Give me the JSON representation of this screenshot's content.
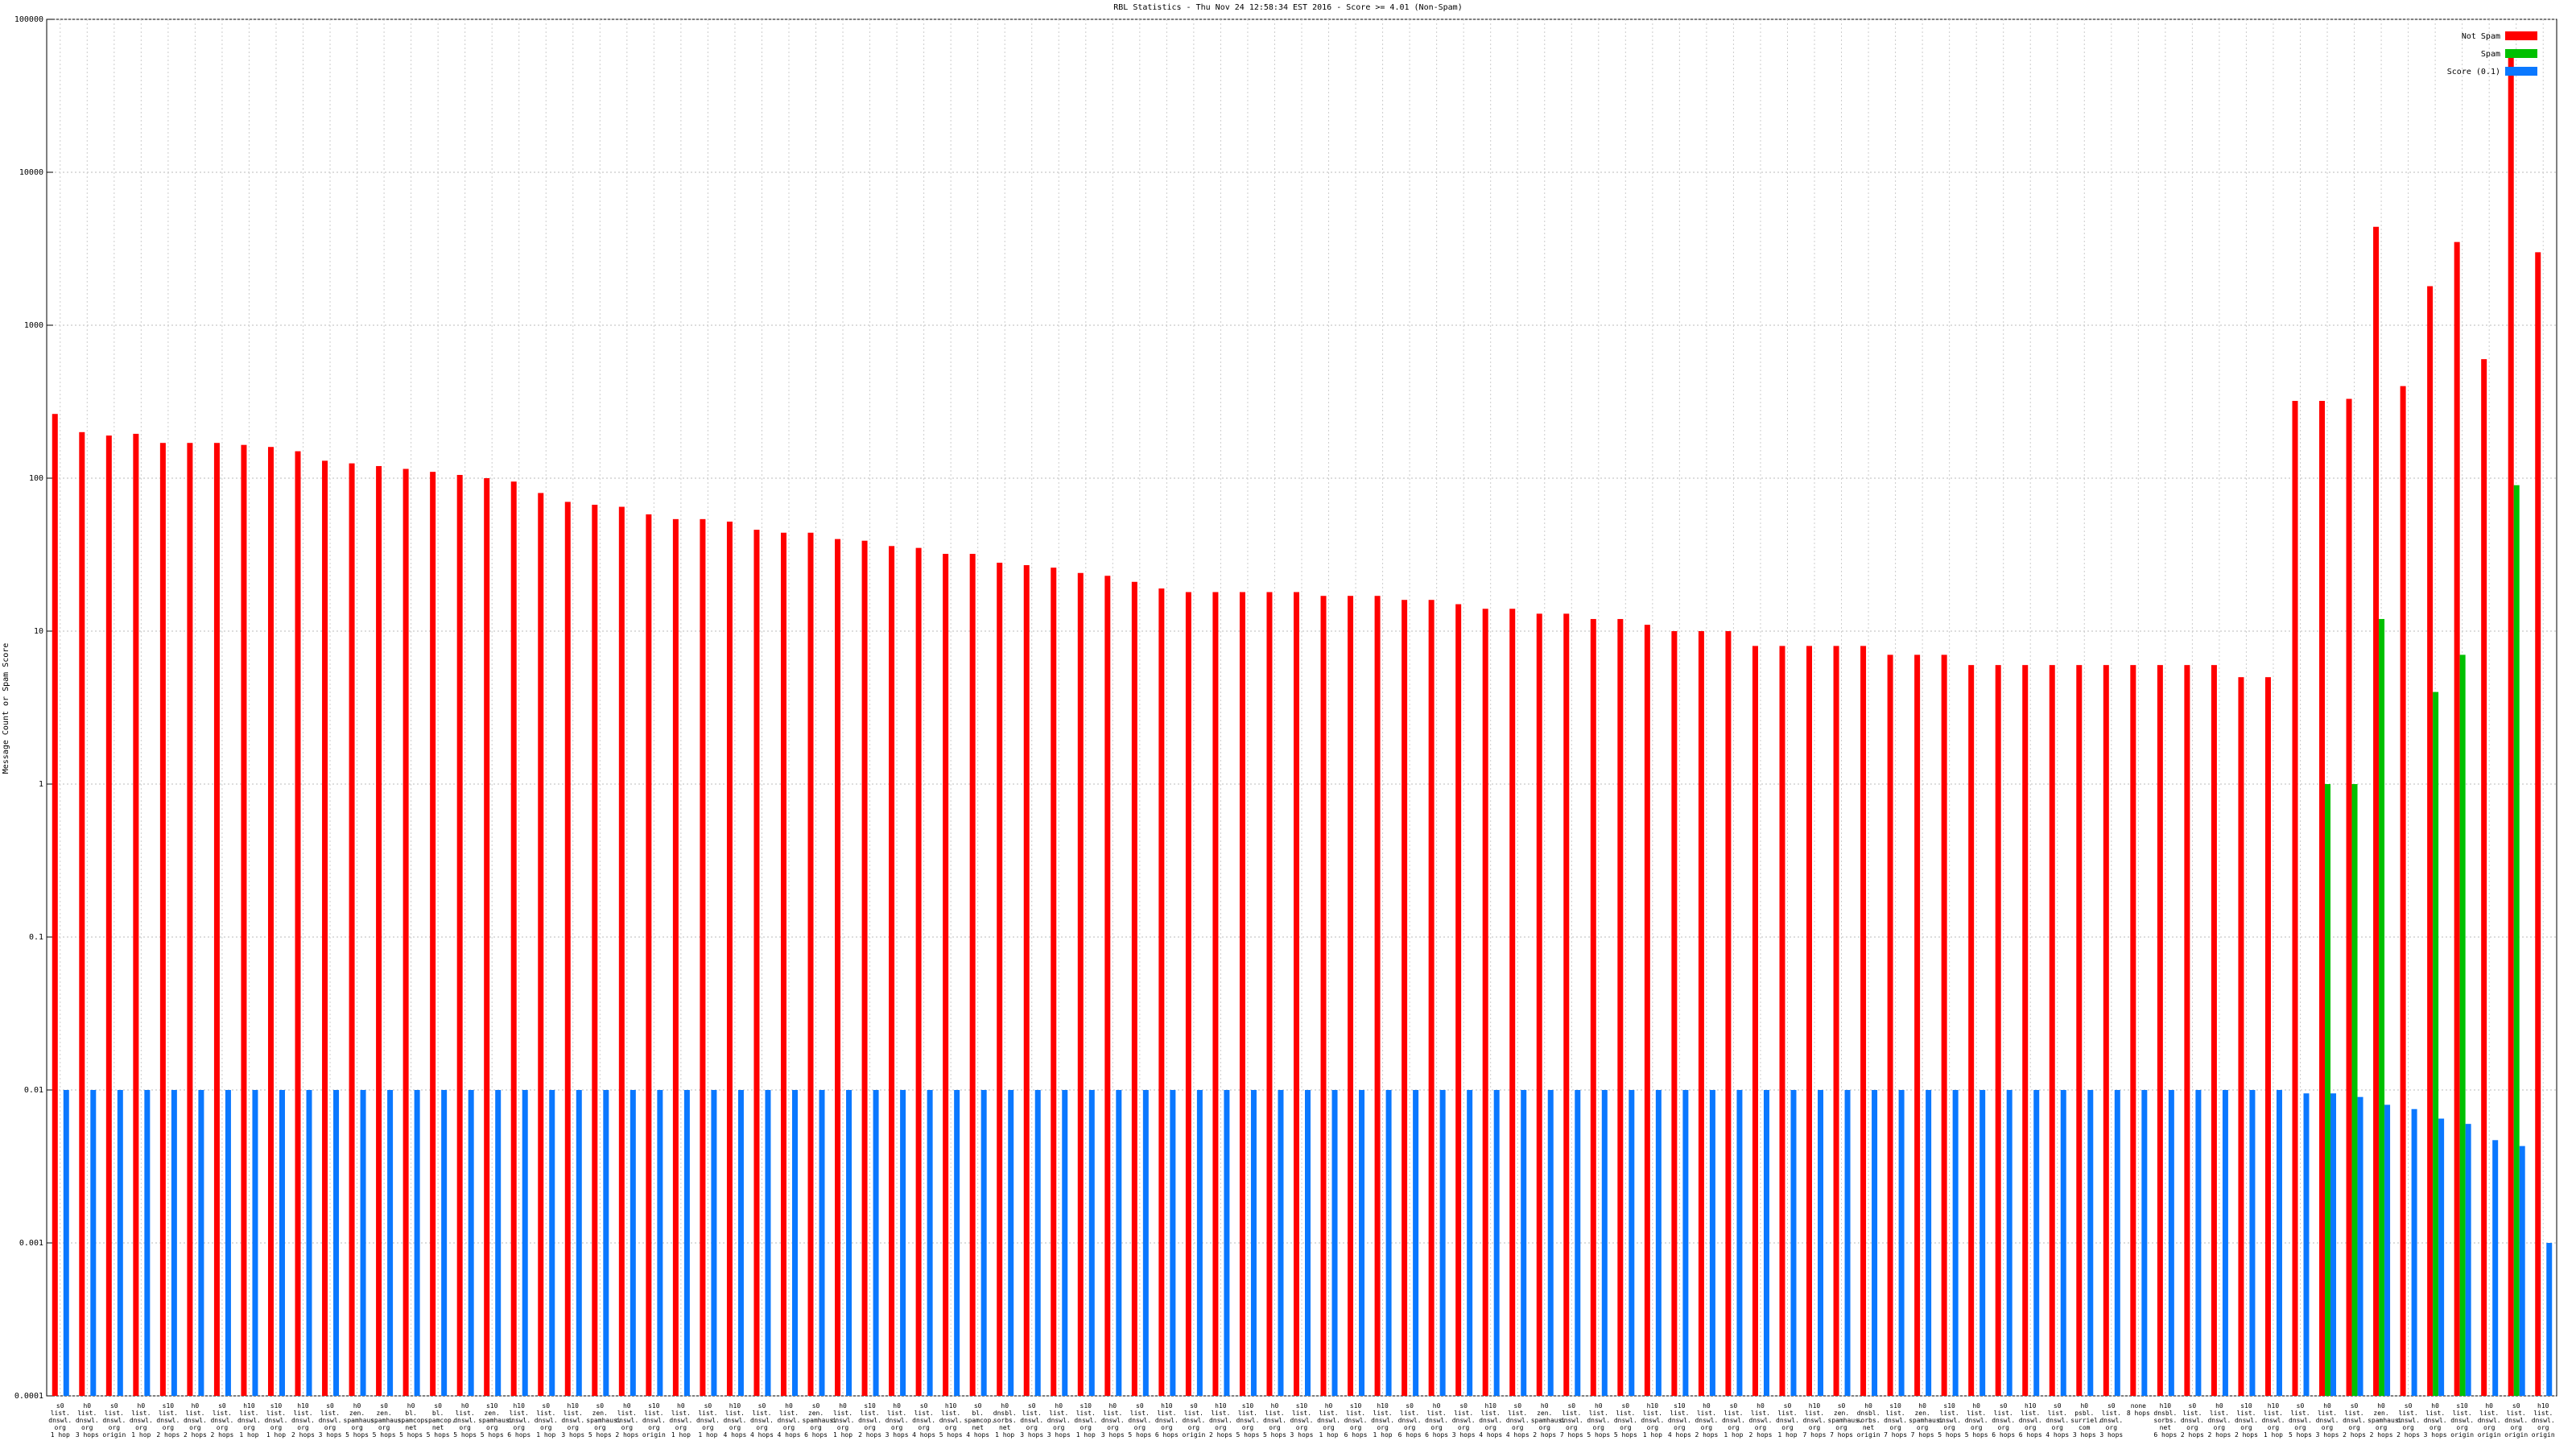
{
  "chart_data": {
    "type": "bar",
    "log_scale": true,
    "grid": true,
    "legend": "top-right",
    "title": "RBL Statistics - Thu Nov 24 12:58:34 EST 2016 - Score >= 4.01 (Non-Spam)",
    "y_label": "Message Count or Spam Score",
    "ylim": [
      0.0001,
      100000
    ],
    "yticks": [
      0.0001,
      0.001,
      0.01,
      0.1,
      1,
      10,
      100,
      1000,
      10000,
      100000
    ],
    "categories": [
      "s0\nlist.\ndnswl.\norg\n1 hop",
      "h0\nlist.\ndnswl.\norg\n3 hops",
      "s0\nlist.\ndnswl.\norg\norigin",
      "h0\nlist.\ndnswl.\norg\n1 hop",
      "s10\nlist.\ndnswl.\norg\n2 hops",
      "h0\nlist.\ndnswl.\norg\n2 hops",
      "s0\nlist.\ndnswl.\norg\n2 hops",
      "h10\nlist.\ndnswl.\norg\n1 hop",
      "s10\nlist.\ndnswl.\norg\n1 hop",
      "h10\nlist.\ndnswl.\norg\n2 hops",
      "s0\nlist.\ndnswl.\norg\n3 hops",
      "h0\nzen.\nspamhaus.\norg\n5 hops",
      "s0\nzen.\nspamhaus.\norg\n5 hops",
      "h0\nbl.\nspamcop.\nnet\n5 hops",
      "s0\nbl.\nspamcop.\nnet\n5 hops",
      "h0\nlist.\ndnswl.\norg\n5 hops",
      "s10\nzen.\nspamhaus.\norg\n5 hops",
      "h10\nlist.\ndnswl.\norg\n6 hops",
      "s0\nlist.\ndnswl.\norg\n1 hop",
      "h10\nlist.\ndnswl.\norg\n3 hops",
      "s0\nzen.\nspamhaus.\norg\n5 hops",
      "h0\nlist.\ndnswl.\norg\n2 hops",
      "s10\nlist.\ndnswl.\norg\norigin",
      "h0\nlist.\ndnswl.\norg\n1 hop",
      "s0\nlist.\ndnswl.\norg\n1 hop",
      "h10\nlist.\ndnswl.\norg\n4 hops",
      "s0\nlist.\ndnswl.\norg\n4 hops",
      "h0\nlist.\ndnswl.\norg\n4 hops",
      "s0\nzen.\nspamhaus.\norg\n6 hops",
      "h0\nlist.\ndnswl.\norg\n1 hop",
      "s10\nlist.\ndnswl.\norg\n2 hops",
      "h0\nlist.\ndnswl.\norg\n3 hops",
      "s0\nlist.\ndnswl.\norg\n4 hops",
      "h10\nlist.\ndnswl.\norg\n5 hops",
      "s0\nbl.\nspamcop.\nnet\n4 hops",
      "h0\ndnsbl.\nsorbs.\nnet\n1 hop",
      "s0\nlist.\ndnswl.\norg\n3 hops",
      "h0\nlist.\ndnswl.\norg\n3 hops",
      "s10\nlist.\ndnswl.\norg\n1 hop",
      "h0\nlist.\ndnswl.\norg\n3 hops",
      "s0\nlist.\ndnswl.\norg\n5 hops",
      "h10\nlist.\ndnswl.\norg\n6 hops",
      "s0\nlist.\ndnswl.\norg\norigin",
      "h10\nlist.\ndnswl.\norg\n2 hops",
      "s10\nlist.\ndnswl.\norg\n5 hops",
      "h0\nlist.\ndnswl.\norg\n5 hops",
      "s10\nlist.\ndnswl.\norg\n3 hops",
      "h0\nlist.\ndnswl.\norg\n1 hop",
      "s10\nlist.\ndnswl.\norg\n6 hops",
      "h10\nlist.\ndnswl.\norg\n1 hop",
      "s0\nlist.\ndnswl.\norg\n6 hops",
      "h0\nlist.\ndnswl.\norg\n6 hops",
      "s0\nlist.\ndnswl.\norg\n3 hops",
      "h10\nlist.\ndnswl.\norg\n4 hops",
      "s0\nlist.\ndnswl.\norg\n4 hops",
      "h0\nzen.\nspamhaus.\norg\n2 hops",
      "s0\nlist.\ndnswl.\norg\n7 hops",
      "h0\nlist.\ndnswl.\norg\n5 hops",
      "s0\nlist.\ndnswl.\norg\n5 hops",
      "h10\nlist.\ndnswl.\norg\n1 hop",
      "s10\nlist.\ndnswl.\norg\n4 hops",
      "h0\nlist.\ndnswl.\norg\n2 hops",
      "s0\nlist.\ndnswl.\norg\n1 hop",
      "h0\nlist.\ndnswl.\norg\n2 hops",
      "s0\nlist.\ndnswl.\norg\n1 hop",
      "h10\nlist.\ndnswl.\norg\n7 hops",
      "s0\nzen.\nspamhaus.\norg\n7 hops",
      "h0\ndnsbl.\nsorbs.\nnet\norigin",
      "s10\nlist.\ndnswl.\norg\n7 hops",
      "h0\nzen.\nspamhaus.\norg\n7 hops",
      "s10\nlist.\ndnswl.\norg\n5 hops",
      "h0\nlist.\ndnswl.\norg\n5 hops",
      "s0\nlist.\ndnswl.\norg\n6 hops",
      "h10\nlist.\ndnswl.\norg\n6 hops",
      "s0\nlist.\ndnswl.\norg\n4 hops",
      "h0\npsbl.\nsurriel.\ncom\n3 hops",
      "s0\nlist.\ndnswl.\norg\n3 hops",
      "none\n8 hops",
      "h10\ndnsbl.\nsorbs.\nnet\n6 hops",
      "s0\nlist.\ndnswl.\norg\n2 hops",
      "h0\nlist.\ndnswl.\norg\n2 hops",
      "s10\nlist.\ndnswl.\norg\n2 hops",
      "h10\nlist.\ndnswl.\norg\n1 hop",
      "s0\nlist.\ndnswl.\norg\n5 hops",
      "h0\nlist.\ndnswl.\norg\n3 hops",
      "s0\nlist.\ndnswl.\norg\n2 hops",
      "h0\nzen.\nspamhaus.\norg\n2 hops",
      "s0\nlist.\ndnswl.\norg\n2 hops",
      "h0\nlist.\ndnswl.\norg\n3 hops",
      "s10\nlist.\ndnswl.\norg\norigin",
      "h0\nlist.\ndnswl.\norg\norigin",
      "s0\nlist.\ndnswl.\norg\norigin",
      "h10\nlist.\ndnswl.\norg\norigin"
    ],
    "series": [
      {
        "name": "Not Spam",
        "color": "#ff0000",
        "values": [
          263,
          200,
          190,
          195,
          170,
          170,
          170,
          165,
          160,
          150,
          130,
          125,
          120,
          115,
          110,
          105,
          100,
          95,
          80,
          70,
          67,
          65,
          58,
          54,
          54,
          52,
          46,
          44,
          44,
          40,
          39,
          36,
          35,
          32,
          32,
          28,
          27,
          26,
          24,
          23,
          21,
          19,
          18,
          18,
          18,
          18,
          18,
          17,
          17,
          17,
          16,
          16,
          15,
          14,
          14,
          13,
          13,
          12,
          12,
          11,
          10,
          10,
          10,
          8,
          8,
          8,
          8,
          8,
          7,
          7,
          7,
          6,
          6,
          6,
          6,
          6,
          6,
          6,
          6,
          6,
          6,
          5,
          5,
          320,
          320,
          330,
          4400,
          400,
          1800,
          3500,
          600,
          56000,
          3000
        ]
      },
      {
        "name": "Spam",
        "color": "#00c000",
        "values": [
          null,
          null,
          null,
          null,
          null,
          null,
          null,
          null,
          null,
          null,
          null,
          null,
          null,
          null,
          null,
          null,
          null,
          null,
          null,
          null,
          null,
          null,
          null,
          null,
          null,
          null,
          null,
          null,
          null,
          null,
          null,
          null,
          null,
          null,
          null,
          null,
          null,
          null,
          null,
          null,
          null,
          null,
          null,
          null,
          null,
          null,
          null,
          null,
          null,
          null,
          null,
          null,
          null,
          null,
          null,
          null,
          null,
          null,
          null,
          null,
          null,
          null,
          null,
          null,
          null,
          null,
          null,
          null,
          null,
          null,
          null,
          null,
          null,
          null,
          null,
          null,
          null,
          null,
          null,
          null,
          null,
          null,
          null,
          null,
          1,
          1,
          12,
          null,
          4,
          7,
          null,
          90,
          null
        ]
      },
      {
        "name": "Score (0.1)",
        "color": "#0a78ff",
        "values": [
          0.01,
          0.01,
          0.01,
          0.01,
          0.01,
          0.01,
          0.01,
          0.01,
          0.01,
          0.01,
          0.01,
          0.01,
          0.01,
          0.01,
          0.01,
          0.01,
          0.01,
          0.01,
          0.01,
          0.01,
          0.01,
          0.01,
          0.01,
          0.01,
          0.01,
          0.01,
          0.01,
          0.01,
          0.01,
          0.01,
          0.01,
          0.01,
          0.01,
          0.01,
          0.01,
          0.01,
          0.01,
          0.01,
          0.01,
          0.01,
          0.01,
          0.01,
          0.01,
          0.01,
          0.01,
          0.01,
          0.01,
          0.01,
          0.01,
          0.01,
          0.01,
          0.01,
          0.01,
          0.01,
          0.01,
          0.01,
          0.01,
          0.01,
          0.01,
          0.01,
          0.01,
          0.01,
          0.01,
          0.01,
          0.01,
          0.01,
          0.01,
          0.01,
          0.01,
          0.01,
          0.01,
          0.01,
          0.01,
          0.01,
          0.01,
          0.01,
          0.01,
          0.01,
          0.01,
          0.01,
          0.01,
          0.01,
          0.01,
          0.0095,
          0.0095,
          0.009,
          0.008,
          0.0075,
          0.0065,
          0.006,
          0.0047,
          0.0043,
          0.001
        ]
      }
    ]
  }
}
